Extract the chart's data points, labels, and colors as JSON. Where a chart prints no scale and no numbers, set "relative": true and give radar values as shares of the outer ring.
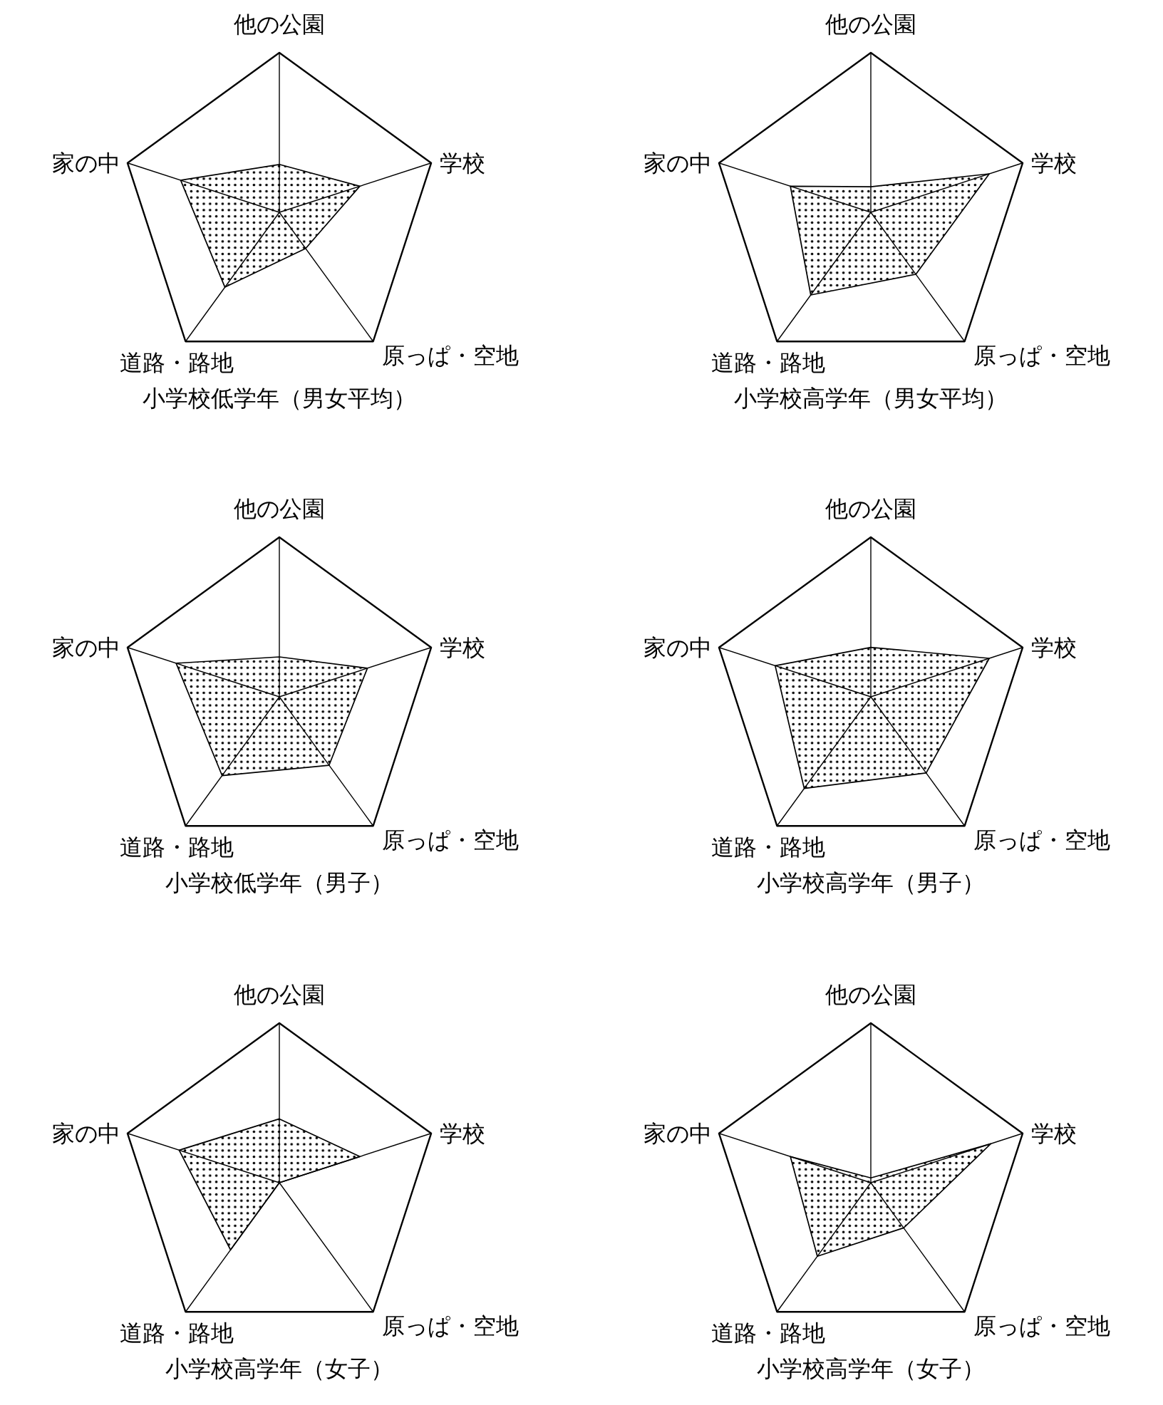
{
  "chart_data": [
    {
      "type": "radar",
      "title": "小学校低学年（男女平均）",
      "categories": [
        "他の公園",
        "学校",
        "原っぱ・空地",
        "道路・路地",
        "家の中"
      ],
      "relative": true,
      "series": [
        {
          "color": "#000000",
          "values": [
            0.3,
            0.53,
            0.28,
            0.58,
            0.65
          ]
        }
      ]
    },
    {
      "type": "radar",
      "title": "小学校高学年（男女平均）",
      "categories": [
        "他の公園",
        "学校",
        "原っぱ・空地",
        "道路・路地",
        "家の中"
      ],
      "relative": true,
      "series": [
        {
          "color": "#000000",
          "values": [
            0.16,
            0.78,
            0.48,
            0.64,
            0.53
          ]
        }
      ]
    },
    {
      "type": "radar",
      "title": "小学校低学年（男子）",
      "categories": [
        "他の公園",
        "学校",
        "原っぱ・空地",
        "道路・路地",
        "家の中"
      ],
      "relative": true,
      "series": [
        {
          "color": "#000000",
          "values": [
            0.25,
            0.58,
            0.53,
            0.61,
            0.68
          ]
        }
      ]
    },
    {
      "type": "radar",
      "title": "小学校高学年（男子）",
      "categories": [
        "他の公園",
        "学校",
        "原っぱ・空地",
        "道路・路地",
        "家の中"
      ],
      "relative": true,
      "series": [
        {
          "color": "#000000",
          "values": [
            0.31,
            0.78,
            0.59,
            0.71,
            0.63
          ]
        }
      ]
    },
    {
      "type": "radar",
      "title": "小学校高学年（女子）",
      "categories": [
        "他の公園",
        "学校",
        "原っぱ・空地",
        "道路・路地",
        "家の中"
      ],
      "relative": true,
      "series": [
        {
          "color": "#000000",
          "values": [
            0.4,
            0.53,
            0,
            0.52,
            0.66
          ]
        }
      ]
    },
    {
      "type": "radar",
      "title": "小学校高学年（女子）",
      "categories": [
        "他の公園",
        "学校",
        "原っぱ・空地",
        "道路・路地",
        "家の中"
      ],
      "relative": true,
      "series": [
        {
          "color": "#000000",
          "values": [
            0.03,
            0.79,
            0.35,
            0.57,
            0.53
          ]
        }
      ]
    }
  ]
}
